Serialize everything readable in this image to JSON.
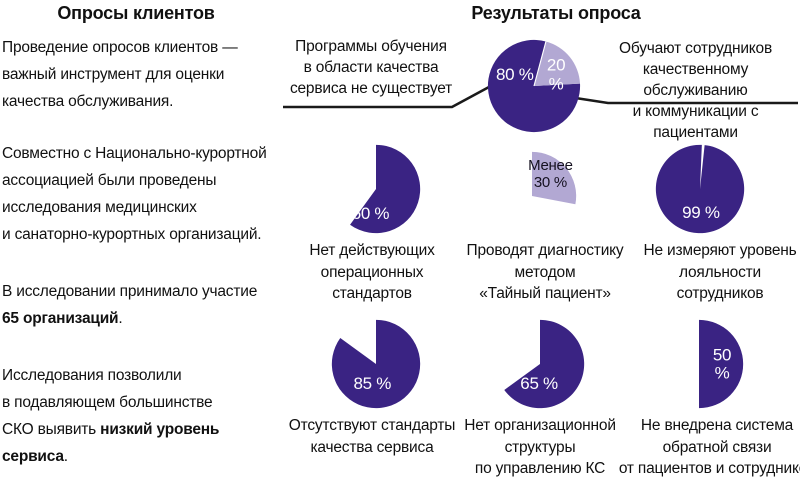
{
  "colors": {
    "purple": "#3a2383",
    "lavender": "#b2a8d3",
    "text": "#111111",
    "line": "#1a1a1a"
  },
  "left_column": {
    "heading": "Опросы клиентов",
    "paragraphs": [
      {
        "runs": [
          {
            "t": "Проведение опросов клиентов —\nважный инструмент для оценки\nкачества обслуживания."
          }
        ]
      },
      {
        "runs": [
          {
            "t": "Совместно с Национально-курортной\nассоциацией были проведены\nисследования медицинских\nи санаторно-курортных организаций."
          }
        ]
      },
      {
        "runs": [
          {
            "t": "В исследовании принимало участие\n"
          },
          {
            "t": "65 организаций",
            "b": true
          },
          {
            "t": "."
          }
        ]
      },
      {
        "runs": [
          {
            "t": "Исследования позволили\nв подавляющем большинстве\nСКО выявить "
          },
          {
            "t": "низкий уровень\nсервиса",
            "b": true
          },
          {
            "t": "."
          }
        ]
      }
    ]
  },
  "chart_data": {
    "type": "pie-set",
    "title": "Результаты опроса",
    "legend_position": "none",
    "pies": [
      {
        "id": "training-programs",
        "values": [
          80,
          20
        ],
        "label": "80 %",
        "label2": "20 %",
        "start_deg": 87,
        "seam_deg": 15,
        "slices": [
          {
            "pct": 80,
            "color": "#3a2383"
          },
          {
            "pct": 20,
            "color": "#b2a8d3"
          }
        ],
        "callout_left": "Программы обучения\nв области качества\nсервиса не существует",
        "callout_right": "Обучают сотрудников\nкачественному обслуживанию\nи коммуникации с пациентами"
      },
      {
        "id": "no-operational-standards",
        "values": [
          60
        ],
        "label": "60 %",
        "start_deg": 0,
        "slices": [
          {
            "pct": 60,
            "color": "#3a2383"
          }
        ],
        "caption": "Нет действующих\nоперационных\nстандартов"
      },
      {
        "id": "mystery-patient",
        "values": [
          28
        ],
        "label": "Менее\n30 %",
        "start_deg": 0,
        "slices": [
          {
            "pct": 28,
            "color": "#b2a8d3"
          }
        ],
        "caption": "Проводят диагностику\nметодом\n«Тайный пациент»"
      },
      {
        "id": "loyalty-not-measured",
        "values": [
          99
        ],
        "label": "99 %",
        "start_deg": 6,
        "slices": [
          {
            "pct": 99,
            "color": "#3a2383"
          }
        ],
        "caption": "Не измеряют уровень\nлояльности\nсотрудников"
      },
      {
        "id": "no-quality-standards",
        "values": [
          85
        ],
        "label": "85 %",
        "start_deg": 0,
        "slices": [
          {
            "pct": 85,
            "color": "#3a2383"
          }
        ],
        "caption": "Отсутствуют стандарты\nкачества сервиса"
      },
      {
        "id": "no-org-structure",
        "values": [
          65
        ],
        "label": "65 %",
        "start_deg": 0,
        "slices": [
          {
            "pct": 65,
            "color": "#3a2383"
          }
        ],
        "caption": "Нет организационной\nструктуры\nпо управлению КС"
      },
      {
        "id": "no-feedback-system",
        "values": [
          50
        ],
        "label": "50 %",
        "start_deg": 0,
        "slices": [
          {
            "pct": 50,
            "color": "#3a2383"
          }
        ],
        "caption": "Не внедрена система\nобратной связи\nот пациентов и сотрудников"
      }
    ]
  }
}
